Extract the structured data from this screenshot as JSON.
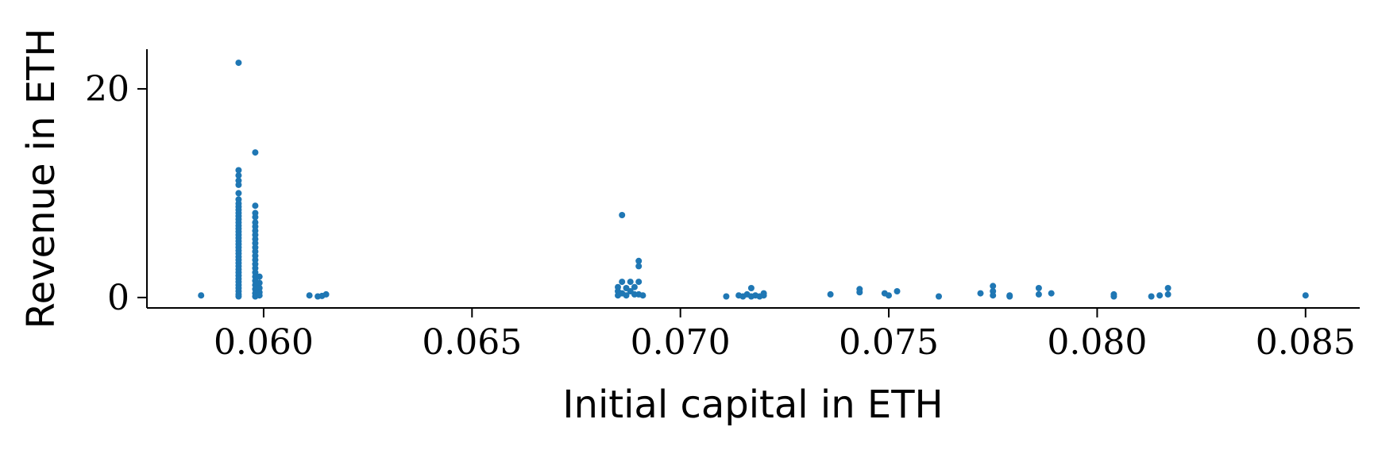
{
  "chart_data": {
    "type": "scatter",
    "xlabel": "Initial capital in ETH",
    "ylabel": "Revenue in ETH",
    "xlim": [
      0.0572,
      0.0863
    ],
    "ylim": [
      -1.0,
      23.8
    ],
    "xticks": [
      0.06,
      0.065,
      0.07,
      0.075,
      0.08,
      0.085
    ],
    "xtick_labels": [
      "0.060",
      "0.065",
      "0.070",
      "0.075",
      "0.080",
      "0.085"
    ],
    "yticks": [
      0,
      20
    ],
    "ytick_labels": [
      "0",
      "20"
    ],
    "grid": false,
    "legend": "none",
    "color": "#1f77b4",
    "series": [
      {
        "points": [
          [
            0.0585,
            0.2
          ],
          [
            0.0594,
            22.5
          ],
          [
            0.0594,
            12.2
          ],
          [
            0.0594,
            11.7
          ],
          [
            0.0594,
            11.2
          ],
          [
            0.0594,
            10.8
          ],
          [
            0.0594,
            10.0
          ],
          [
            0.0594,
            9.4
          ],
          [
            0.0594,
            9.0
          ],
          [
            0.0594,
            8.7
          ],
          [
            0.0594,
            8.4
          ],
          [
            0.0594,
            8.1
          ],
          [
            0.0594,
            7.8
          ],
          [
            0.0594,
            7.5
          ],
          [
            0.0594,
            7.2
          ],
          [
            0.0594,
            6.9
          ],
          [
            0.0594,
            6.6
          ],
          [
            0.0594,
            6.3
          ],
          [
            0.0594,
            6.0
          ],
          [
            0.0594,
            5.7
          ],
          [
            0.0594,
            5.4
          ],
          [
            0.0594,
            5.1
          ],
          [
            0.0594,
            4.8
          ],
          [
            0.0594,
            4.5
          ],
          [
            0.0594,
            4.2
          ],
          [
            0.0594,
            3.9
          ],
          [
            0.0594,
            3.6
          ],
          [
            0.0594,
            3.3
          ],
          [
            0.0594,
            3.0
          ],
          [
            0.0594,
            2.7
          ],
          [
            0.0594,
            2.4
          ],
          [
            0.0594,
            2.1
          ],
          [
            0.0594,
            1.8
          ],
          [
            0.0594,
            1.5
          ],
          [
            0.0594,
            1.2
          ],
          [
            0.0594,
            0.9
          ],
          [
            0.0594,
            0.6
          ],
          [
            0.0594,
            0.3
          ],
          [
            0.0594,
            0.1
          ],
          [
            0.0598,
            13.9
          ],
          [
            0.0598,
            8.8
          ],
          [
            0.0598,
            8.1
          ],
          [
            0.0598,
            7.7
          ],
          [
            0.0598,
            7.2
          ],
          [
            0.0598,
            6.8
          ],
          [
            0.0598,
            6.4
          ],
          [
            0.0598,
            6.0
          ],
          [
            0.0598,
            5.6
          ],
          [
            0.0598,
            5.2
          ],
          [
            0.0598,
            4.8
          ],
          [
            0.0598,
            4.4
          ],
          [
            0.0598,
            4.0
          ],
          [
            0.0598,
            3.6
          ],
          [
            0.0598,
            3.2
          ],
          [
            0.0598,
            2.8
          ],
          [
            0.0598,
            2.4
          ],
          [
            0.0598,
            2.0
          ],
          [
            0.0598,
            1.6
          ],
          [
            0.0598,
            1.2
          ],
          [
            0.0598,
            0.8
          ],
          [
            0.0598,
            0.4
          ],
          [
            0.0598,
            0.1
          ],
          [
            0.0599,
            2.0
          ],
          [
            0.0599,
            1.4
          ],
          [
            0.0599,
            0.9
          ],
          [
            0.0599,
            0.5
          ],
          [
            0.0599,
            0.2
          ],
          [
            0.0611,
            0.2
          ],
          [
            0.0613,
            0.1
          ],
          [
            0.0614,
            0.15
          ],
          [
            0.0615,
            0.3
          ],
          [
            0.0686,
            7.9
          ],
          [
            0.0686,
            1.5
          ],
          [
            0.0685,
            1.0
          ],
          [
            0.0685,
            0.6
          ],
          [
            0.0685,
            0.2
          ],
          [
            0.0686,
            0.4
          ],
          [
            0.0687,
            0.9
          ],
          [
            0.0687,
            0.2
          ],
          [
            0.0688,
            1.5
          ],
          [
            0.0688,
            0.6
          ],
          [
            0.0689,
            1.0
          ],
          [
            0.0689,
            0.3
          ],
          [
            0.069,
            3.5
          ],
          [
            0.069,
            3.0
          ],
          [
            0.069,
            1.5
          ],
          [
            0.069,
            0.3
          ],
          [
            0.0691,
            0.2
          ],
          [
            0.0711,
            0.1
          ],
          [
            0.0714,
            0.2
          ],
          [
            0.0715,
            0.1
          ],
          [
            0.0716,
            0.3
          ],
          [
            0.0717,
            0.9
          ],
          [
            0.0717,
            0.1
          ],
          [
            0.0718,
            0.2
          ],
          [
            0.0719,
            0.1
          ],
          [
            0.072,
            0.4
          ],
          [
            0.072,
            0.2
          ],
          [
            0.0736,
            0.3
          ],
          [
            0.0743,
            0.8
          ],
          [
            0.0743,
            0.5
          ],
          [
            0.0749,
            0.4
          ],
          [
            0.075,
            0.2
          ],
          [
            0.0752,
            0.6
          ],
          [
            0.0762,
            0.1
          ],
          [
            0.0772,
            0.4
          ],
          [
            0.0775,
            1.1
          ],
          [
            0.0775,
            0.6
          ],
          [
            0.0775,
            0.2
          ],
          [
            0.0779,
            0.1
          ],
          [
            0.0779,
            0.2
          ],
          [
            0.0786,
            0.9
          ],
          [
            0.0786,
            0.3
          ],
          [
            0.0789,
            0.4
          ],
          [
            0.0804,
            0.3
          ],
          [
            0.0804,
            0.1
          ],
          [
            0.0813,
            0.1
          ],
          [
            0.0815,
            0.2
          ],
          [
            0.0817,
            0.9
          ],
          [
            0.0817,
            0.3
          ],
          [
            0.085,
            0.2
          ]
        ]
      }
    ]
  }
}
